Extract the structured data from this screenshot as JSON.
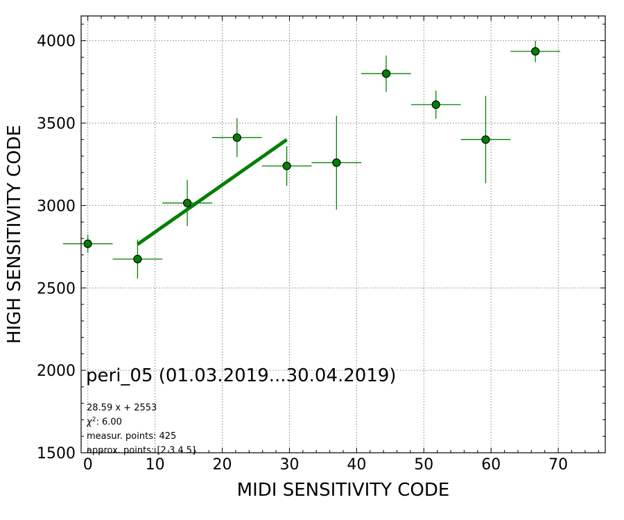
{
  "chart_data": {
    "type": "scatter",
    "title": "peri_05 (01.03.2019...30.04.2019)",
    "xlabel": "MIDI SENSITIVITY CODE",
    "ylabel": "HIGH SENSITIVITY CODE",
    "xlim": [
      -1,
      77
    ],
    "ylim": [
      1500,
      4150
    ],
    "xticks": [
      0,
      10,
      20,
      30,
      40,
      50,
      60,
      70
    ],
    "yticks": [
      1500,
      2000,
      2500,
      3000,
      3500,
      4000
    ],
    "xtick_labels": [
      "0",
      "10",
      "20",
      "30",
      "40",
      "50",
      "60",
      "70"
    ],
    "ytick_labels": [
      "1500",
      "2000",
      "2500",
      "3000",
      "3500",
      "4000"
    ],
    "grid": true,
    "colors": {
      "marker": "#008000",
      "errorbar": "#008000",
      "fit": "#008000",
      "grid": "#808080"
    },
    "series": [
      {
        "points": [
          {
            "x": 0.0,
            "y": 2768,
            "xerr": 3.7,
            "yerr": 55
          },
          {
            "x": 7.4,
            "y": 2675,
            "xerr": 3.7,
            "yerr": 118
          },
          {
            "x": 14.8,
            "y": 3015,
            "xerr": 3.7,
            "yerr": 140
          },
          {
            "x": 22.2,
            "y": 3412,
            "xerr": 3.7,
            "yerr": 118
          },
          {
            "x": 29.6,
            "y": 3240,
            "xerr": 3.7,
            "yerr": 120
          },
          {
            "x": 37.0,
            "y": 3260,
            "xerr": 3.7,
            "yerr": 285
          },
          {
            "x": 44.4,
            "y": 3800,
            "xerr": 3.7,
            "yerr": 110
          },
          {
            "x": 51.8,
            "y": 3612,
            "xerr": 3.7,
            "yerr": 85
          },
          {
            "x": 59.2,
            "y": 3400,
            "xerr": 3.7,
            "yerr": 265
          },
          {
            "x": 66.6,
            "y": 3935,
            "xerr": 3.7,
            "yerr": 65
          }
        ]
      }
    ],
    "fit_line": {
      "slope": 28.59,
      "intercept": 2553,
      "x_start": 7.4,
      "x_end": 29.6
    },
    "annotations": [
      {
        "kind": "plain",
        "text": "28.59 x + 2553"
      },
      {
        "kind": "chi",
        "prefix": "χ",
        "sup": "2",
        "text": ": 6.00"
      },
      {
        "kind": "plain",
        "text": "measur. points: 425"
      },
      {
        "kind": "plain",
        "text": "approx. points: [2 3 4 5]"
      }
    ]
  }
}
